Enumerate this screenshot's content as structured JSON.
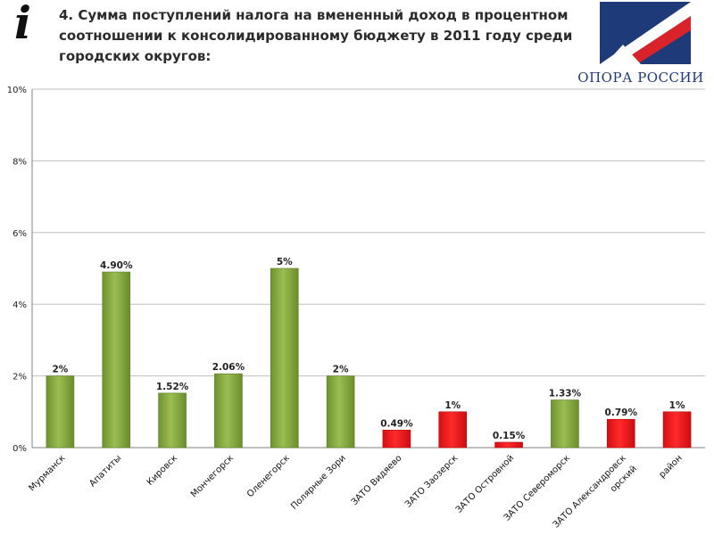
{
  "header": {
    "title": "4. Сумма поступлений налога на вмененный доход в процентном соотношении к консолидированному бюджету в 2011 году среди городских округов:",
    "info_icon": "i",
    "logo_text": "ОПОРА РОССИИ"
  },
  "colors": {
    "green": "#7fa23a",
    "red": "#e8151b",
    "grid": "#bfbfbf",
    "axis": "#808080",
    "logo_blue": "#1f3a78",
    "logo_red": "#d8232a"
  },
  "chart_data": {
    "type": "bar",
    "title": "",
    "xlabel": "",
    "ylabel": "",
    "ylim": [
      0,
      10
    ],
    "y_ticks": [
      0,
      2,
      4,
      6,
      8,
      10
    ],
    "y_tick_labels": [
      "0%",
      "2%",
      "4%",
      "6%",
      "8%",
      "10%"
    ],
    "grid": true,
    "categories": [
      "Мурманск",
      "Апатиты",
      "Кировск",
      "Мончегорск",
      "Оленегорск",
      "Полярные Зори",
      "ЗАТО Видяево",
      "ЗАТО Заозерск",
      "ЗАТО Островной",
      "ЗАТО Североморск",
      "ЗАТО Александровск",
      "район"
    ],
    "category_lines": [
      [
        "Мурманск"
      ],
      [
        "Апатиты"
      ],
      [
        "Кировск"
      ],
      [
        "Мончегорск"
      ],
      [
        "Оленегорск"
      ],
      [
        "Полярные Зори"
      ],
      [
        "ЗАТО Видяево"
      ],
      [
        "ЗАТО Заозерск"
      ],
      [
        "ЗАТО Островной"
      ],
      [
        "ЗАТО Североморск"
      ],
      [
        "ЗАТО Александровск",
        "орский"
      ],
      [
        "район"
      ]
    ],
    "values": [
      2,
      4.9,
      1.52,
      2.06,
      5,
      2,
      0.49,
      1,
      0.15,
      1.33,
      0.79,
      1
    ],
    "value_labels": [
      "2%",
      "4.90%",
      "1.52%",
      "2.06%",
      "5%",
      "2%",
      "0.49%",
      "1%",
      "0.15%",
      "1.33%",
      "0.79%",
      "1%"
    ],
    "bar_colors": [
      "green",
      "green",
      "green",
      "green",
      "green",
      "green",
      "red",
      "red",
      "red",
      "green",
      "red",
      "red"
    ]
  }
}
